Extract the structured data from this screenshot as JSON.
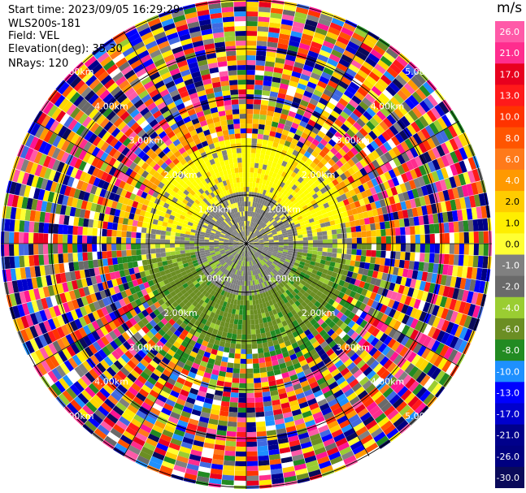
{
  "header": {
    "start_time": "Start time: 2023/09/05 16:29:29",
    "instrument": "WLS200s-181",
    "field": "Field: VEL",
    "elevation": "Elevation(deg): 35.30",
    "nrays": "NRays: 120"
  },
  "colorbar": {
    "unit": "m/s",
    "levels": [
      "26.0",
      "21.0",
      "17.0",
      "13.0",
      "10.0",
      "8.0",
      "6.0",
      "4.0",
      "2.0",
      "1.0",
      "0.0",
      "-1.0",
      "-2.0",
      "-4.0",
      "-6.0",
      "-8.0",
      "-10.0",
      "-13.0",
      "-17.0",
      "-21.0",
      "-26.0",
      "-30.0"
    ],
    "colors": [
      "#ff5aa8",
      "#ff2d8e",
      "#e8001e",
      "#ff1a1a",
      "#ff3300",
      "#ff5500",
      "#ff7a1a",
      "#ff9900",
      "#ffcc00",
      "#ffee00",
      "#ffff33",
      "#808080",
      "#6a6a6a",
      "#9acd32",
      "#6b8e23",
      "#228b22",
      "#1e90ff",
      "#0000ff",
      "#0000cd",
      "#00008b",
      "#000080",
      "#0a0a5a"
    ]
  },
  "chart_data": {
    "type": "heatmap",
    "title": "",
    "variable": "VEL",
    "units": "m/s",
    "nrays": 120,
    "range_ring_labels": [
      "1.00km",
      "2.00km",
      "3.00km",
      "4.00km",
      "5.00km"
    ],
    "range_ring_km": [
      1,
      2,
      3,
      4,
      5
    ],
    "color_scale_min": -30.0,
    "color_scale_max": 26.0,
    "pattern": {
      "inner_north": "positive (yellow, ~2 m/s)",
      "inner_south": "negative (green, ~-4 m/s)",
      "center": "near zero (gray)",
      "outer": "noise (random colors)"
    }
  }
}
